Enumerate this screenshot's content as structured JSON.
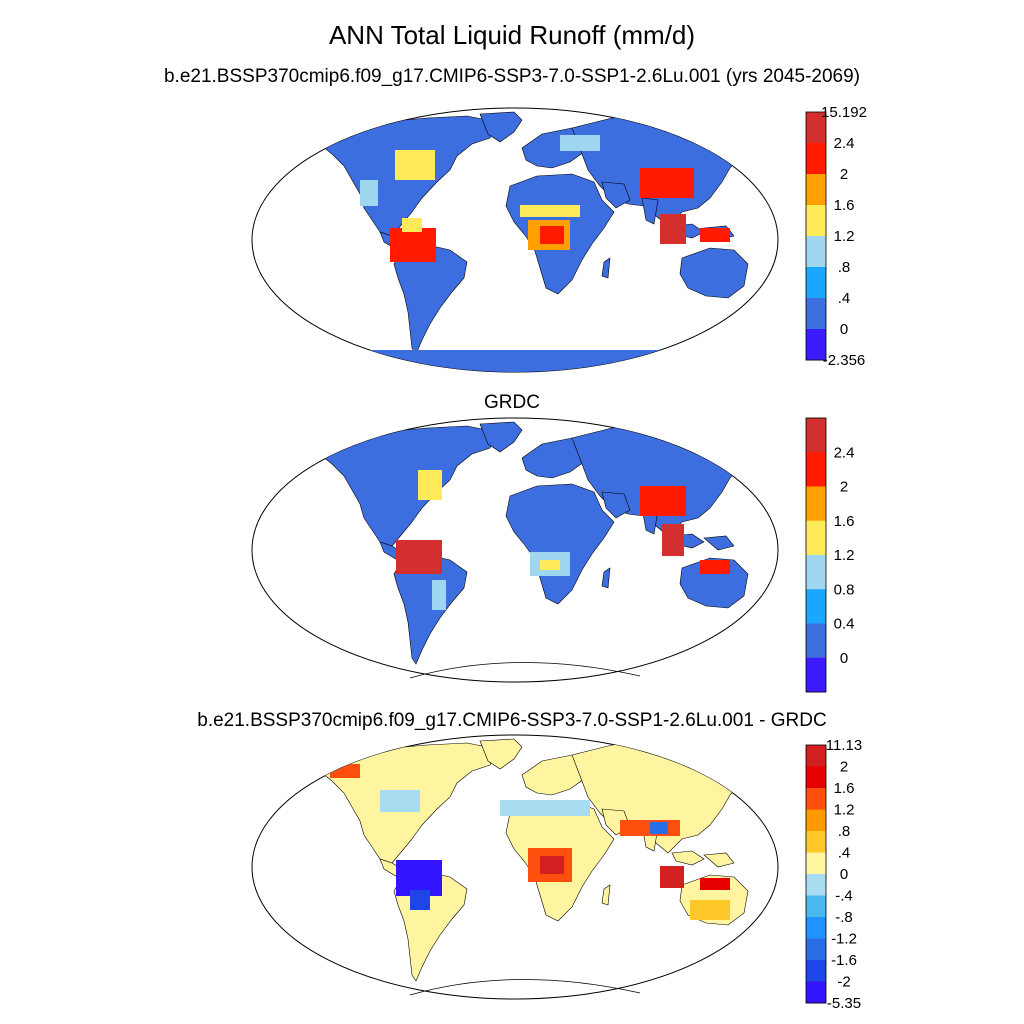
{
  "title": "ANN Total Liquid Runoff (mm/d)",
  "panels": [
    {
      "id": "model",
      "subtitle": "b.e21.BSSP370cmip6.f09_g17.CMIP6-SSP3-7.0-SSP1-2.6Lu.001 (yrs 2045-2069)",
      "colorbar": {
        "labels": [
          "15.192",
          "2.4",
          "2",
          "1.6",
          "1.2",
          ".8",
          ".4",
          "0",
          "-2.356"
        ],
        "colors": [
          "#d32f2f",
          "#ff1a00",
          "#ff9f00",
          "#ffea5a",
          "#9fd6f0",
          "#1aa7ff",
          "#3d6ee0",
          "#3c1aff"
        ]
      }
    },
    {
      "id": "grdc",
      "subtitle": "GRDC",
      "colorbar": {
        "labels": [
          "2.4",
          "2",
          "1.6",
          "1.2",
          "0.8",
          "0.4",
          "0"
        ],
        "colors": [
          "#d32f2f",
          "#ff1a00",
          "#ff9f00",
          "#ffea5a",
          "#9fd6f0",
          "#1aa7ff",
          "#3d6ee0",
          "#3c1aff"
        ]
      }
    },
    {
      "id": "diff",
      "subtitle": "b.e21.BSSP370cmip6.f09_g17.CMIP6-SSP3-7.0-SSP1-2.6Lu.001 - GRDC",
      "colorbar": {
        "labels": [
          "11.13",
          "2",
          "1.6",
          "1.2",
          ".8",
          ".4",
          "0",
          "-.4",
          "-.8",
          "-1.2",
          "-1.6",
          "-2",
          "-5.35"
        ],
        "colors": [
          "#d21f1f",
          "#e60000",
          "#ff4f0f",
          "#ff9a00",
          "#ffc72a",
          "#fff5a0",
          "#a8dcf0",
          "#4ab8ee",
          "#1f93ff",
          "#2a6ee6",
          "#1e46e6",
          "#3214ff"
        ]
      }
    }
  ]
}
